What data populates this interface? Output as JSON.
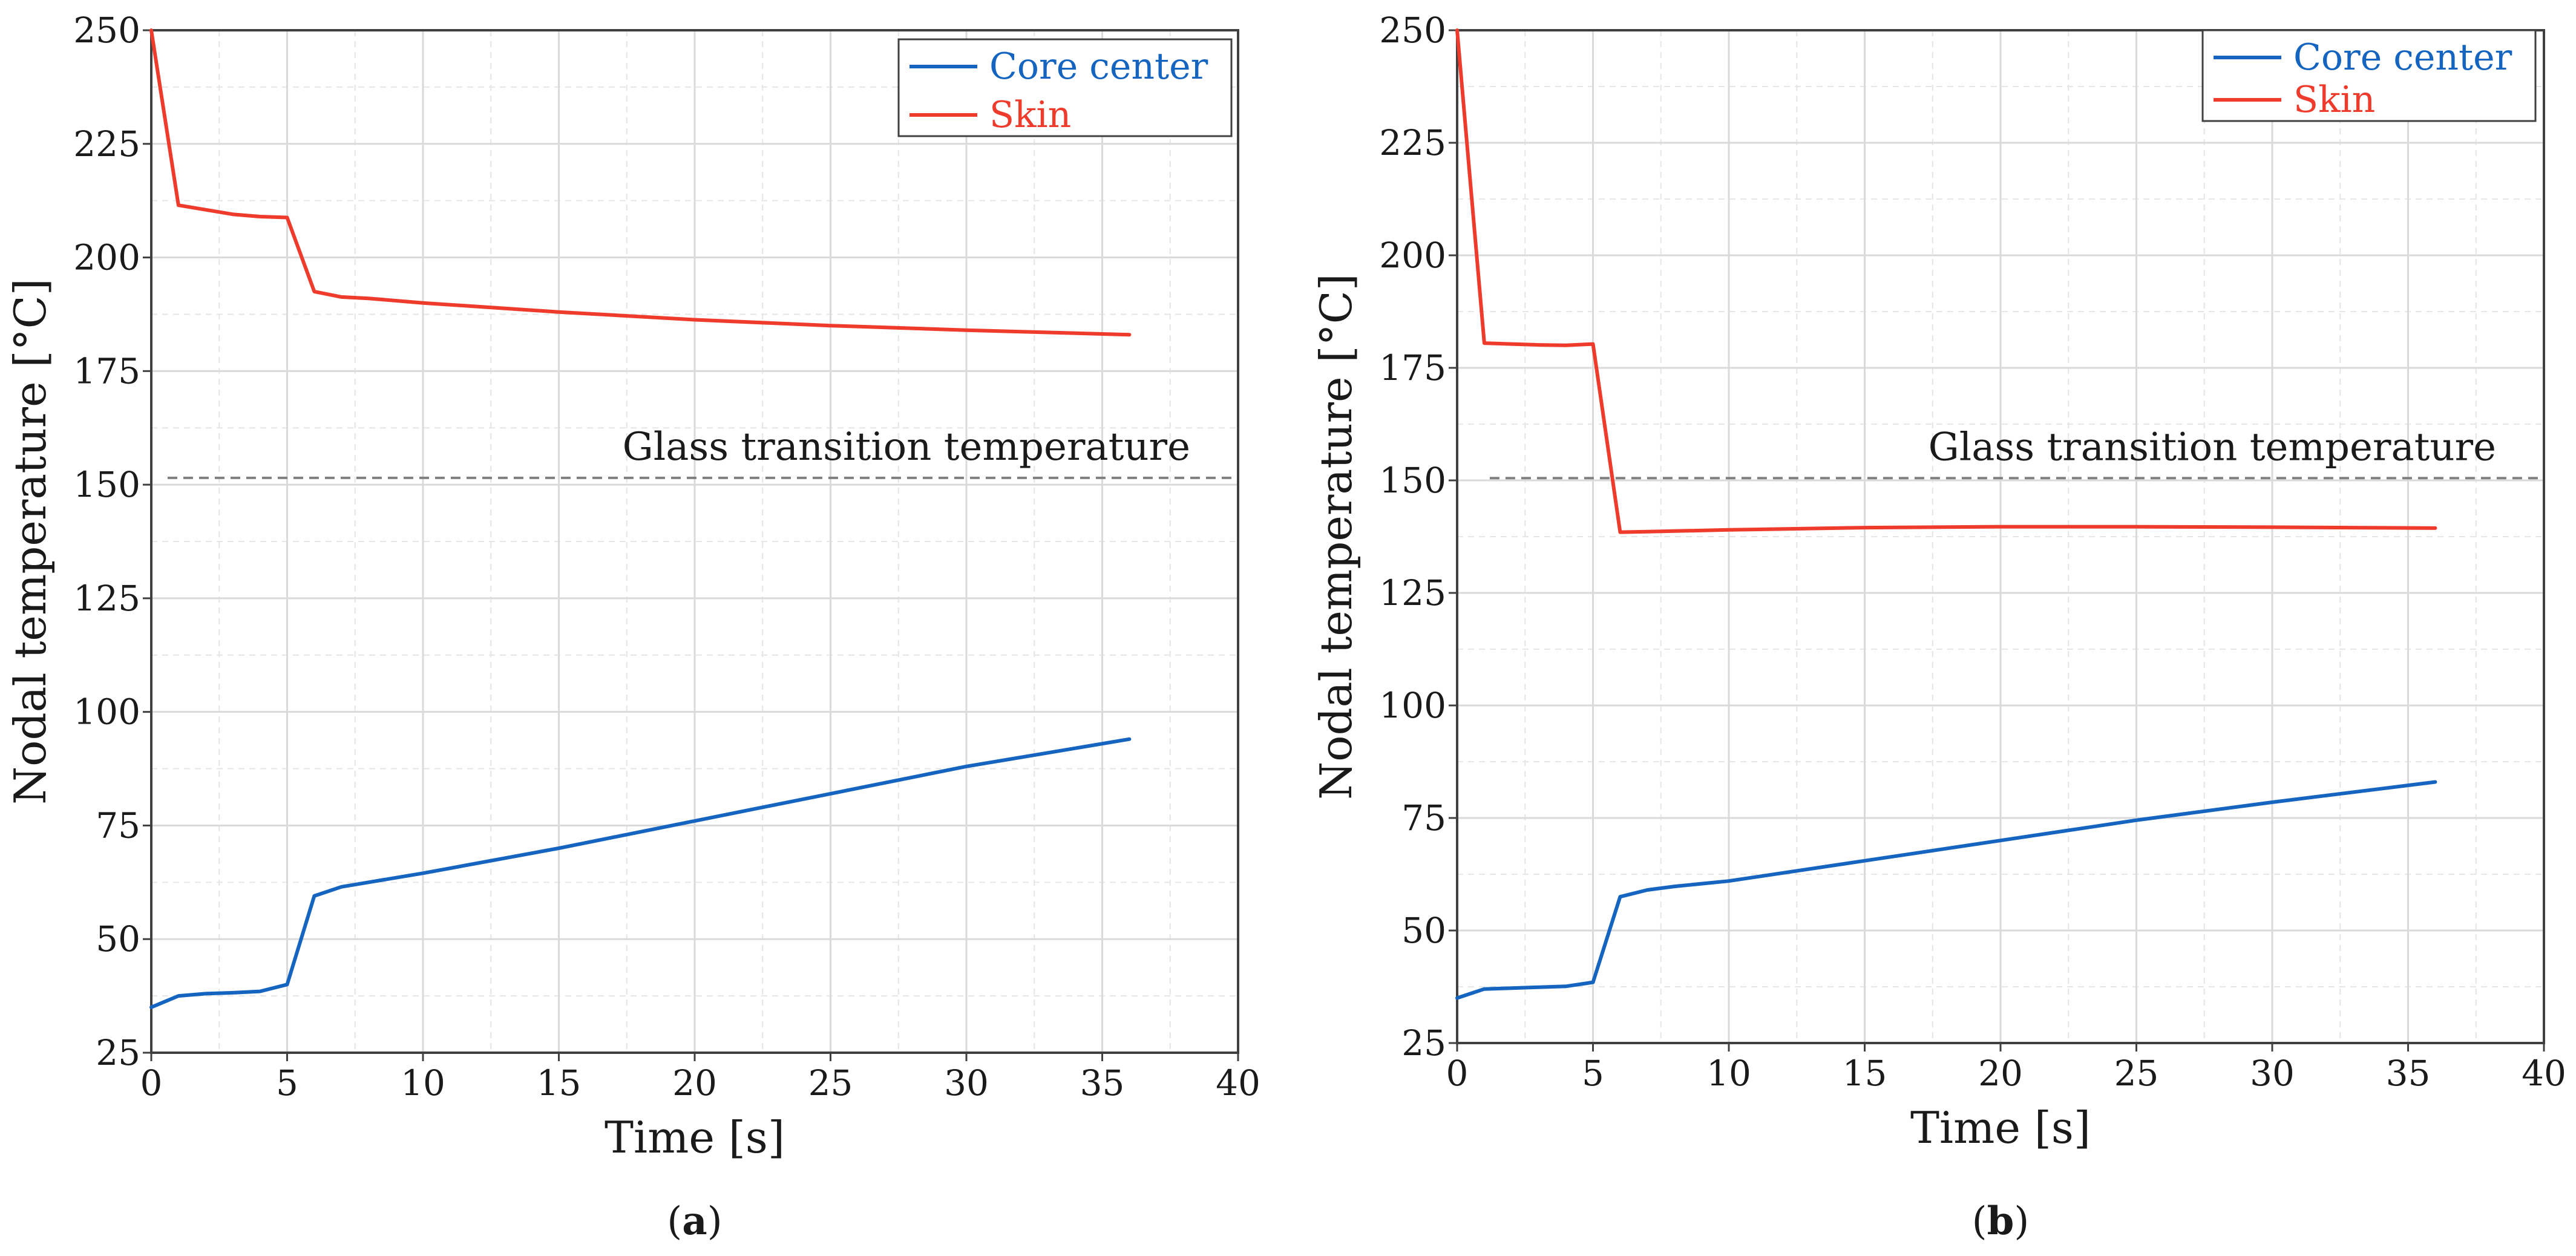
{
  "chart_data": [
    {
      "type": "line",
      "panel": "a",
      "caption_open": "(",
      "caption_letter": "a",
      "caption_close": ")",
      "xlabel": "Time [s]",
      "ylabel": "Nodal temperature [°C]",
      "xlim": [
        0,
        40
      ],
      "ylim": [
        25,
        250
      ],
      "xticks": [
        0,
        5,
        10,
        15,
        20,
        25,
        30,
        35,
        40
      ],
      "yticks": [
        25,
        50,
        75,
        100,
        125,
        150,
        175,
        200,
        225,
        250
      ],
      "grid": true,
      "legend_position": "top-right",
      "threshold": {
        "label": "Glass transition temperature",
        "y": 151.5,
        "x_start": 0.6,
        "x_end": 39.8,
        "color": "#808080"
      },
      "series": [
        {
          "name": "Core center",
          "color": "#1565c0",
          "x": [
            0,
            1,
            2,
            3,
            4,
            5,
            6,
            7,
            8,
            10,
            15,
            20,
            25,
            30,
            33,
            36
          ],
          "values": [
            35,
            37.5,
            38,
            38.2,
            38.5,
            40,
            59.5,
            61.5,
            62.5,
            64.5,
            70,
            76,
            82,
            88,
            91,
            94
          ]
        },
        {
          "name": "Skin",
          "color": "#ef3b2c",
          "x": [
            0,
            1,
            2,
            3,
            4,
            5,
            6,
            7,
            8,
            10,
            15,
            20,
            25,
            30,
            36
          ],
          "values": [
            250,
            211.5,
            210.5,
            209.5,
            209,
            208.8,
            192.5,
            191.3,
            191,
            190,
            188,
            186.3,
            185,
            184,
            183
          ]
        }
      ]
    },
    {
      "type": "line",
      "panel": "b",
      "caption_open": "(",
      "caption_letter": "b",
      "caption_close": ")",
      "xlabel": "Time [s]",
      "ylabel": "Nodal temperature [°C]",
      "xlim": [
        0,
        40
      ],
      "ylim": [
        25,
        250
      ],
      "xticks": [
        0,
        5,
        10,
        15,
        20,
        25,
        30,
        35,
        40
      ],
      "yticks": [
        25,
        50,
        75,
        100,
        125,
        150,
        175,
        200,
        225,
        250
      ],
      "grid": true,
      "legend_position": "top-right",
      "threshold": {
        "label": "Glass transition temperature",
        "y": 150.5,
        "x_start": 1.2,
        "x_end": 39.8,
        "color": "#808080"
      },
      "series": [
        {
          "name": "Core center",
          "color": "#1565c0",
          "x": [
            0,
            1,
            2,
            3,
            4,
            5,
            6,
            7,
            8,
            10,
            15,
            20,
            25,
            30,
            36
          ],
          "values": [
            35,
            37,
            37.2,
            37.4,
            37.6,
            38.5,
            57.5,
            59,
            59.8,
            61,
            65.5,
            70,
            74.5,
            78.5,
            83
          ]
        },
        {
          "name": "Skin",
          "color": "#ef3b2c",
          "x": [
            0,
            1,
            2,
            3,
            4,
            5,
            6,
            7,
            10,
            15,
            20,
            25,
            30,
            36
          ],
          "values": [
            250,
            180.5,
            180.3,
            180.1,
            180,
            180.3,
            138.5,
            138.6,
            139,
            139.5,
            139.7,
            139.7,
            139.6,
            139.4
          ]
        }
      ]
    }
  ]
}
